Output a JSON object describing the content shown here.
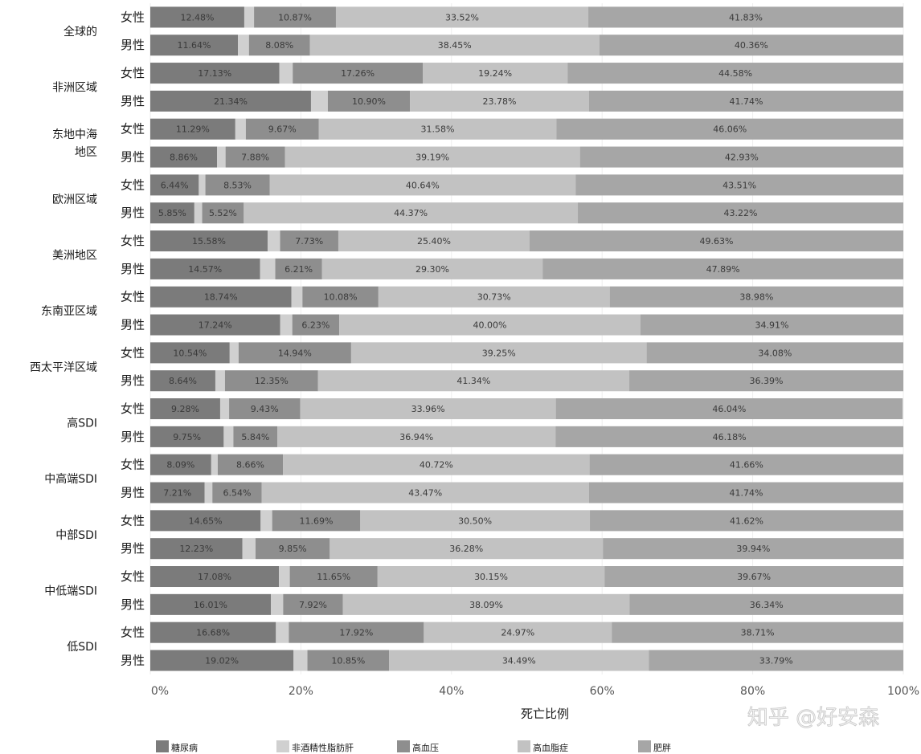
{
  "chart_data": {
    "type": "bar",
    "orientation": "horizontal",
    "stacked": true,
    "xlabel": "死亡比例",
    "xlim": [
      0,
      100
    ],
    "xticks": [
      "0%",
      "20%",
      "40%",
      "60%",
      "80%",
      "100%"
    ],
    "legend_position": "bottom",
    "series": [
      {
        "name": "糖尿病",
        "color": "#7b7b7b"
      },
      {
        "name": "非酒精性脂肪肝",
        "color": "#d0d0d0"
      },
      {
        "name": "高血压",
        "color": "#8e8e8e"
      },
      {
        "name": "高血脂症",
        "color": "#c2c2c2"
      },
      {
        "name": "肥胖",
        "color": "#a6a6a6"
      }
    ],
    "regions": [
      {
        "label_lines": [
          "全球的"
        ],
        "rows": [
          {
            "sex": "女性",
            "values": [
              12.48,
              1.3,
              10.87,
              33.52,
              41.83
            ]
          },
          {
            "sex": "男性",
            "values": [
              11.64,
              1.47,
              8.08,
              38.45,
              40.36
            ]
          }
        ]
      },
      {
        "label_lines": [
          "非洲区域"
        ],
        "rows": [
          {
            "sex": "女性",
            "values": [
              17.13,
              1.79,
              17.26,
              19.24,
              44.58
            ]
          },
          {
            "sex": "男性",
            "values": [
              21.34,
              2.24,
              10.9,
              23.78,
              41.74
            ]
          }
        ]
      },
      {
        "label_lines": [
          "东地中海",
          "地区"
        ],
        "rows": [
          {
            "sex": "女性",
            "values": [
              11.29,
              1.4,
              9.67,
              31.58,
              46.06
            ]
          },
          {
            "sex": "男性",
            "values": [
              8.86,
              1.14,
              7.88,
              39.19,
              42.93
            ]
          }
        ]
      },
      {
        "label_lines": [
          "欧洲区域"
        ],
        "rows": [
          {
            "sex": "女性",
            "values": [
              6.44,
              0.88,
              8.53,
              40.64,
              43.51
            ]
          },
          {
            "sex": "男性",
            "values": [
              5.85,
              1.04,
              5.52,
              44.37,
              43.22
            ]
          }
        ]
      },
      {
        "label_lines": [
          "美洲地区"
        ],
        "rows": [
          {
            "sex": "女性",
            "values": [
              15.58,
              1.66,
              7.73,
              25.4,
              49.63
            ]
          },
          {
            "sex": "男性",
            "values": [
              14.57,
              2.03,
              6.21,
              29.3,
              47.89
            ]
          }
        ]
      },
      {
        "label_lines": [
          "东南亚区域"
        ],
        "rows": [
          {
            "sex": "女性",
            "values": [
              18.74,
              1.47,
              10.08,
              30.73,
              38.98
            ]
          },
          {
            "sex": "男性",
            "values": [
              17.24,
              1.62,
              6.23,
              40.0,
              34.91
            ]
          }
        ]
      },
      {
        "label_lines": [
          "西太平洋区域"
        ],
        "rows": [
          {
            "sex": "女性",
            "values": [
              10.54,
              1.19,
              14.94,
              39.25,
              34.08
            ]
          },
          {
            "sex": "男性",
            "values": [
              8.64,
              1.28,
              12.35,
              41.34,
              36.39
            ]
          }
        ]
      },
      {
        "label_lines": [
          "高SDI"
        ],
        "rows": [
          {
            "sex": "女性",
            "values": [
              9.28,
              1.19,
              9.43,
              33.96,
              46.04
            ]
          },
          {
            "sex": "男性",
            "values": [
              9.75,
              1.29,
              5.84,
              36.94,
              46.18
            ]
          }
        ]
      },
      {
        "label_lines": [
          "中高端SDI"
        ],
        "rows": [
          {
            "sex": "女性",
            "values": [
              8.09,
              0.87,
              8.66,
              40.72,
              41.66
            ]
          },
          {
            "sex": "男性",
            "values": [
              7.21,
              1.04,
              6.54,
              43.47,
              41.74
            ]
          }
        ]
      },
      {
        "label_lines": [
          "中部SDI"
        ],
        "rows": [
          {
            "sex": "女性",
            "values": [
              14.65,
              1.54,
              11.69,
              30.5,
              41.62
            ]
          },
          {
            "sex": "男性",
            "values": [
              12.23,
              1.75,
              9.85,
              36.28,
              39.94
            ]
          }
        ]
      },
      {
        "label_lines": [
          "中低端SDI"
        ],
        "rows": [
          {
            "sex": "女性",
            "values": [
              17.08,
              1.45,
              11.65,
              30.15,
              39.67
            ]
          },
          {
            "sex": "男性",
            "values": [
              16.01,
              1.64,
              7.92,
              38.09,
              36.34
            ]
          }
        ]
      },
      {
        "label_lines": [
          "低SDI"
        ],
        "rows": [
          {
            "sex": "女性",
            "values": [
              16.68,
              1.72,
              17.92,
              24.97,
              38.71
            ]
          },
          {
            "sex": "男性",
            "values": [
              19.02,
              1.85,
              10.85,
              34.49,
              33.79
            ]
          }
        ]
      }
    ]
  },
  "watermark": "知乎 @好安森"
}
